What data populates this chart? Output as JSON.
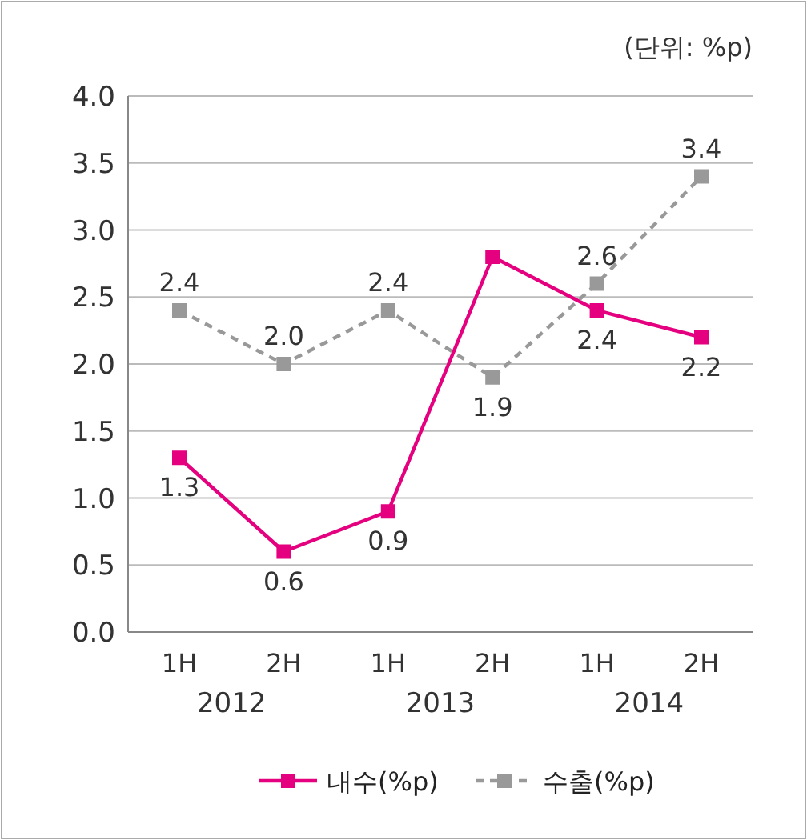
{
  "chart_data": {
    "type": "line",
    "categories": [
      "1H",
      "2H",
      "1H",
      "2H",
      "1H",
      "2H"
    ],
    "annotations": [
      "(단위: %p)",
      "2012",
      "2013",
      "2014"
    ],
    "ylim": [
      0,
      4
    ],
    "yticks": [
      "0.0",
      "0.5",
      "1.0",
      "1.5",
      "2.0",
      "2.5",
      "3.0",
      "3.5",
      "4.0"
    ],
    "grid": "y",
    "legend": "bottom",
    "marker": "square",
    "series": [
      {
        "name": "내수(%p)",
        "color": "#e4007f",
        "line_style": "solid",
        "values": [
          1.3,
          0.6,
          0.9,
          2.8,
          2.4,
          2.2
        ],
        "value_labels": [
          "1.3",
          "0.6",
          "0.9",
          null,
          "2.4",
          "2.2"
        ]
      },
      {
        "name": "수출(%p)",
        "color": "#999999",
        "line_style": "dashed",
        "values": [
          2.4,
          2.0,
          2.4,
          1.9,
          2.6,
          3.4
        ],
        "value_labels": [
          "2.4",
          "2.0",
          "2.4",
          "1.9",
          "2.6",
          "3.4"
        ]
      }
    ]
  }
}
